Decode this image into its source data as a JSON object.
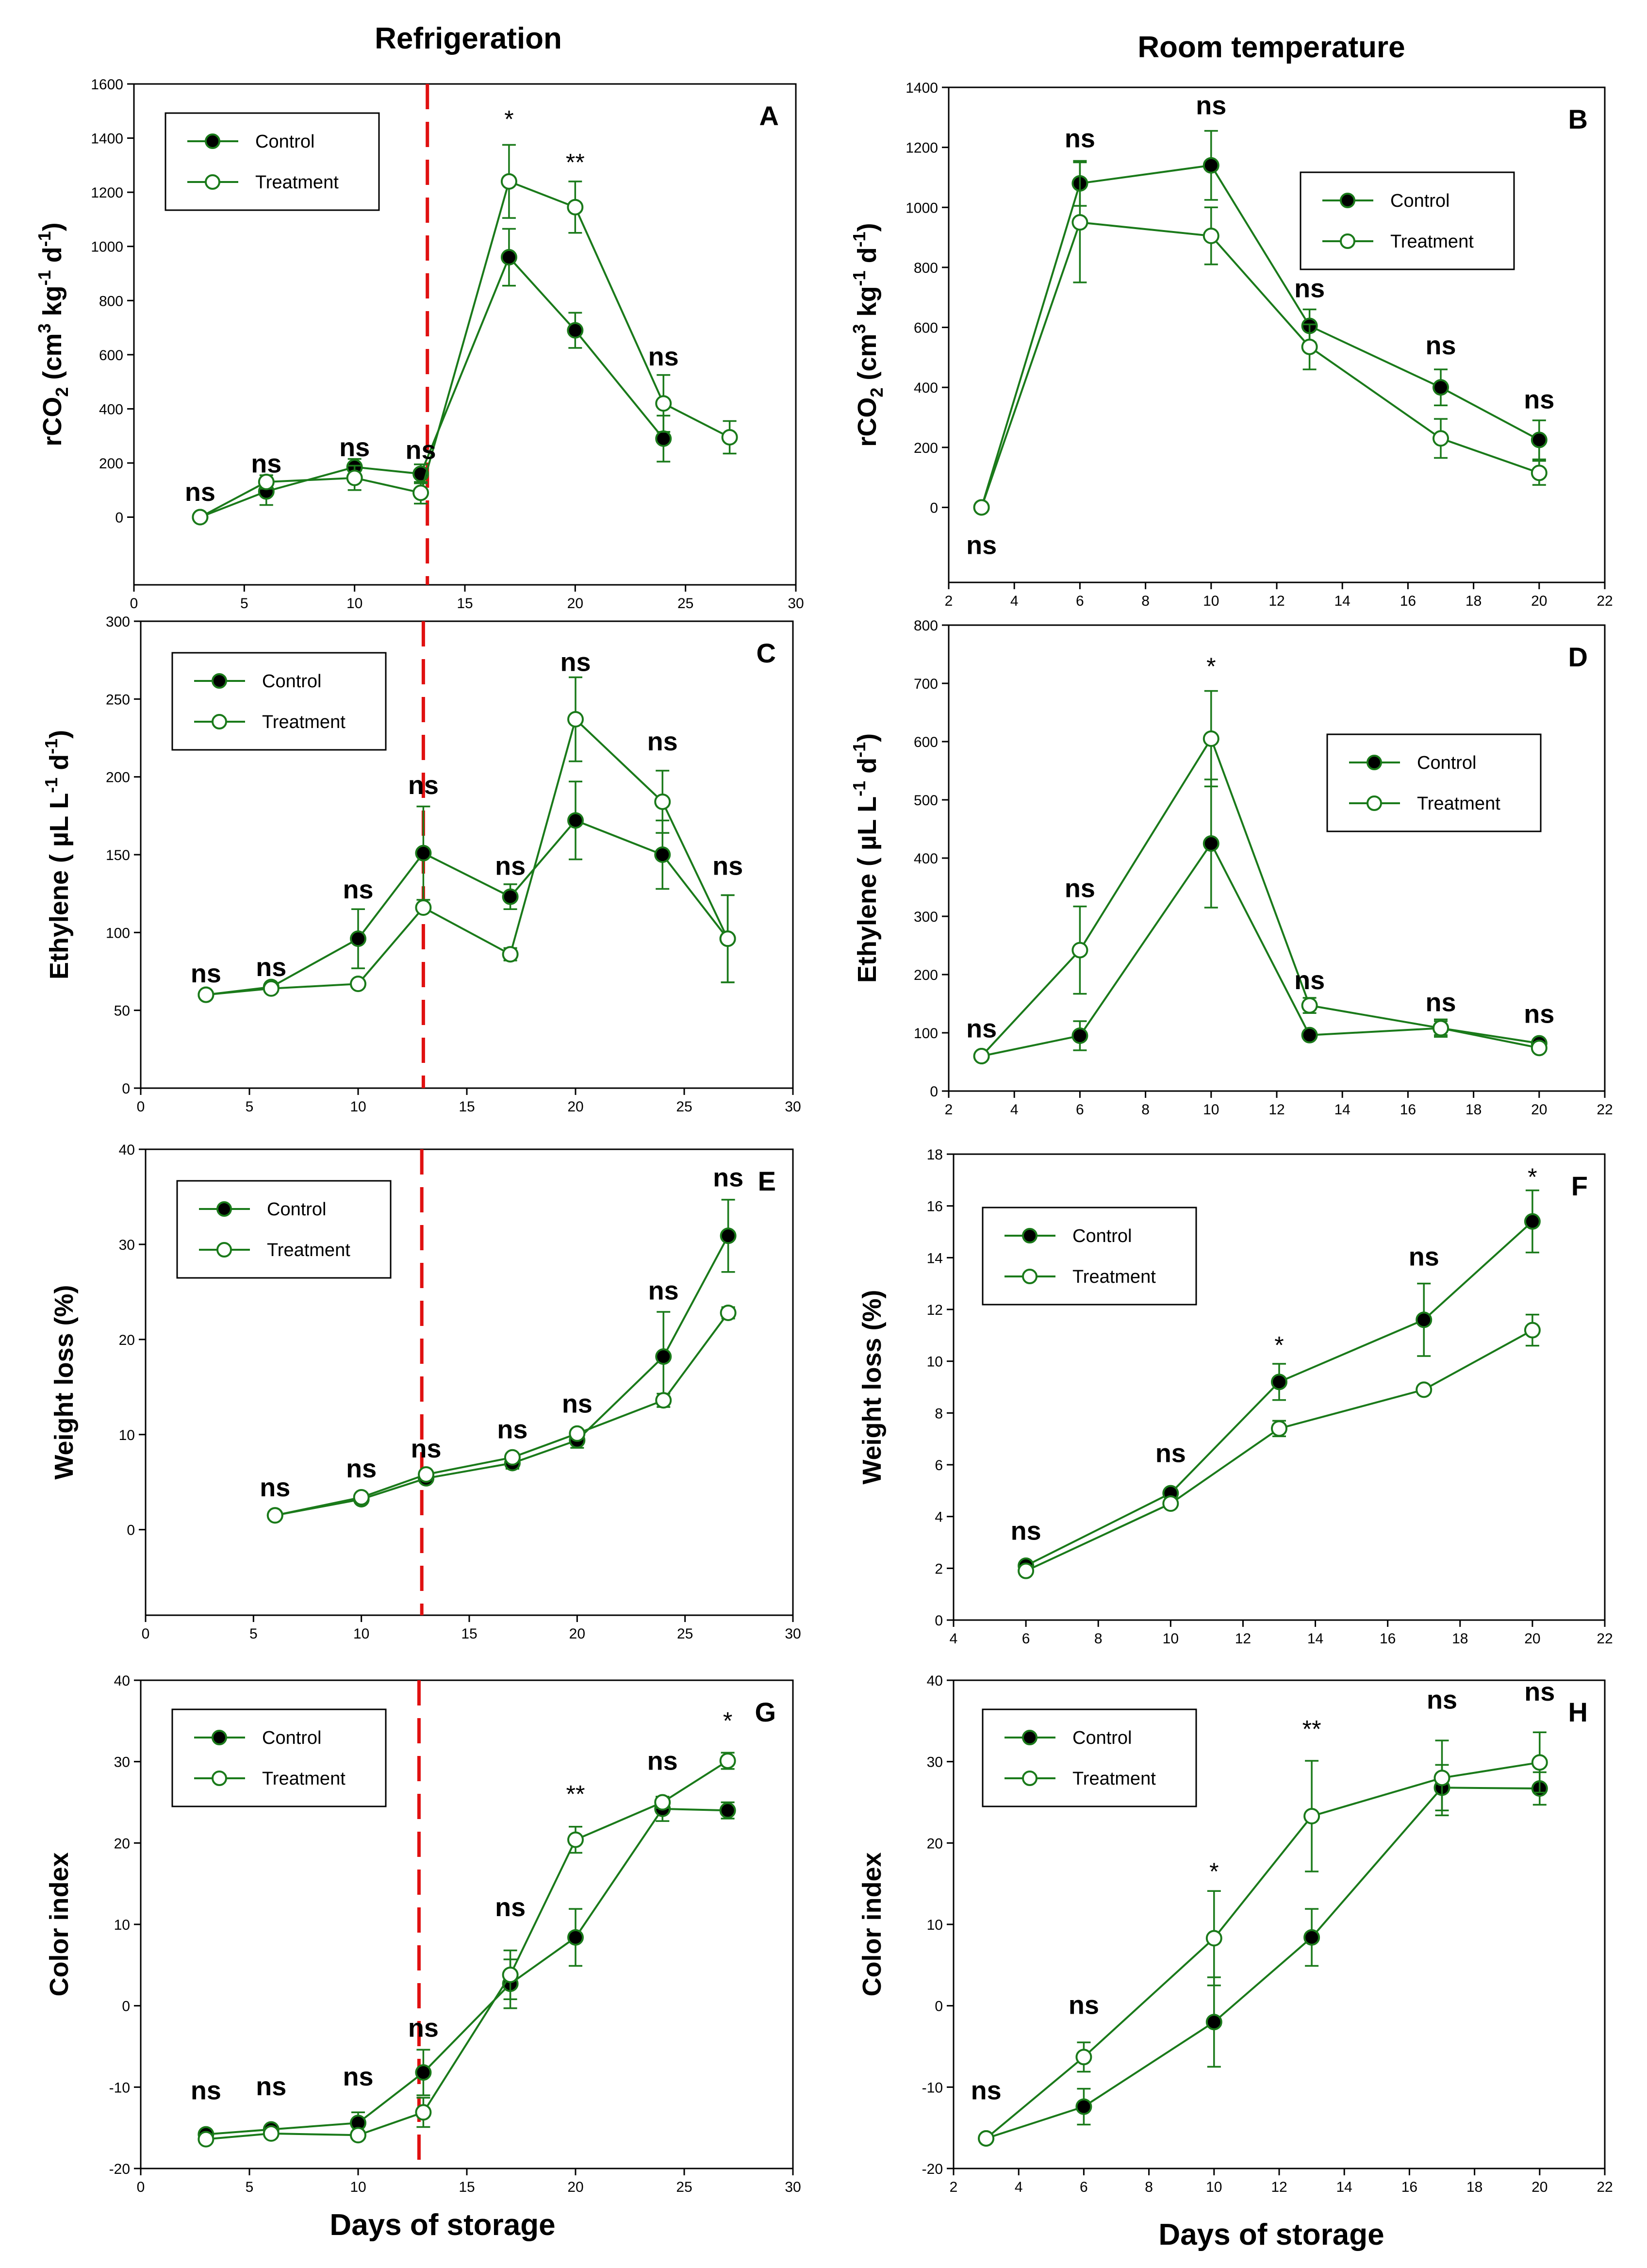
{
  "columns": {
    "left": "Refrigeration",
    "right": "Room temperature"
  },
  "xlabel": "Days of storage",
  "colors": {
    "series": "#1a7a1a",
    "marker_control": "#000000",
    "marker_treatment": "#ffffff",
    "divider": "#e01010",
    "text": "#000000"
  },
  "chart_data": [
    {
      "type": "line",
      "id": "A",
      "letter": "A",
      "ylabel_main": "rCO",
      "ylabel_sub": "2",
      "ylabel_rest": " (cm",
      "ylabel_sup1": "3",
      "ylabel_mid": " kg",
      "ylabel_sup2": "-1",
      "ylabel_mid2": " d",
      "ylabel_sup3": "-1",
      "ylabel_end": ")",
      "xlim": [
        0,
        30
      ],
      "ylim": [
        -250,
        1600
      ],
      "xticks": [
        0,
        5,
        10,
        15,
        20,
        25,
        30
      ],
      "yticks": [
        0,
        200,
        400,
        600,
        800,
        1000,
        1200,
        1400,
        1600
      ],
      "legend": {
        "position": "top-left",
        "control": "Control",
        "treatment": "Treatment"
      },
      "divider_x": 13.3,
      "series": [
        {
          "name": "Control",
          "x": [
            3,
            6,
            10,
            13,
            17,
            20,
            24
          ],
          "y": [
            0,
            95,
            185,
            160,
            960,
            690,
            290
          ],
          "err": [
            0,
            50,
            30,
            35,
            105,
            65,
            85
          ]
        },
        {
          "name": "Treatment",
          "x": [
            3,
            6,
            10,
            13,
            17,
            20,
            24,
            27
          ],
          "y": [
            0,
            130,
            145,
            90,
            1240,
            1145,
            420,
            295
          ],
          "err": [
            0,
            25,
            45,
            40,
            135,
            95,
            105,
            60
          ]
        }
      ],
      "annotations": [
        {
          "x": 3,
          "y": 60,
          "text": "ns"
        },
        {
          "x": 6,
          "y": 165,
          "text": "ns"
        },
        {
          "x": 10,
          "y": 225,
          "text": "ns"
        },
        {
          "x": 13,
          "y": 215,
          "text": "ns"
        },
        {
          "x": 17,
          "y": 1440,
          "text": "*"
        },
        {
          "x": 20,
          "y": 1280,
          "text": "**"
        },
        {
          "x": 24,
          "y": 560,
          "text": "ns"
        }
      ]
    },
    {
      "type": "line",
      "id": "B",
      "letter": "B",
      "ylabel_main": "rCO",
      "ylabel_sub": "2",
      "ylabel_rest": " (cm",
      "ylabel_sup1": "3",
      "ylabel_mid": " kg",
      "ylabel_sup2": "-1",
      "ylabel_mid2": " d",
      "ylabel_sup3": "-1",
      "ylabel_end": ")",
      "xlim": [
        2,
        22
      ],
      "ylim": [
        -250,
        1400
      ],
      "xticks": [
        2,
        4,
        6,
        8,
        10,
        12,
        14,
        16,
        18,
        20,
        22
      ],
      "yticks": [
        0,
        200,
        400,
        600,
        800,
        1000,
        1200,
        1400
      ],
      "legend": {
        "position": "top-right",
        "control": "Control",
        "treatment": "Treatment"
      },
      "divider_x": null,
      "series": [
        {
          "name": "Control",
          "x": [
            3,
            6,
            10,
            13,
            17,
            20
          ],
          "y": [
            0,
            1080,
            1140,
            605,
            400,
            225
          ],
          "err": [
            0,
            75,
            115,
            55,
            60,
            65
          ]
        },
        {
          "name": "Treatment",
          "x": [
            3,
            6,
            10,
            13,
            17,
            20
          ],
          "y": [
            0,
            950,
            905,
            535,
            230,
            115
          ],
          "err": [
            0,
            200,
            95,
            75,
            65,
            40
          ]
        }
      ],
      "annotations": [
        {
          "x": 3,
          "y": -155,
          "text": "ns"
        },
        {
          "x": 6,
          "y": 1200,
          "text": "ns"
        },
        {
          "x": 10,
          "y": 1310,
          "text": "ns"
        },
        {
          "x": 13,
          "y": 700,
          "text": "ns"
        },
        {
          "x": 17,
          "y": 510,
          "text": "ns"
        },
        {
          "x": 20,
          "y": 330,
          "text": "ns"
        }
      ]
    },
    {
      "type": "line",
      "id": "C",
      "letter": "C",
      "ylabel_main": "Ethylene ( µL L",
      "ylabel_sup1": "-1",
      "ylabel_mid": " d",
      "ylabel_sup2": "-1",
      "ylabel_end": ")",
      "xlim": [
        0,
        30
      ],
      "ylim": [
        0,
        300
      ],
      "xticks": [
        0,
        5,
        10,
        15,
        20,
        25,
        30
      ],
      "yticks": [
        0,
        50,
        100,
        150,
        200,
        250,
        300
      ],
      "legend": {
        "position": "top-left",
        "control": "Control",
        "treatment": "Treatment"
      },
      "divider_x": 13.0,
      "series": [
        {
          "name": "Control",
          "x": [
            3,
            6,
            10,
            13,
            17,
            20,
            24,
            27
          ],
          "y": [
            60,
            65,
            96,
            151,
            123,
            172,
            150,
            96
          ],
          "err": [
            0,
            0,
            19,
            30,
            8,
            25,
            22,
            28
          ]
        },
        {
          "name": "Treatment",
          "x": [
            3,
            6,
            10,
            13,
            17,
            20,
            24,
            27
          ],
          "y": [
            60,
            64,
            67,
            116,
            86,
            237,
            184,
            96
          ],
          "err": [
            0,
            0,
            0,
            0,
            4,
            27,
            20,
            28
          ]
        }
      ],
      "annotations": [
        {
          "x": 3,
          "y": 68,
          "text": "ns"
        },
        {
          "x": 6,
          "y": 72,
          "text": "ns"
        },
        {
          "x": 10,
          "y": 122,
          "text": "ns"
        },
        {
          "x": 13,
          "y": 189,
          "text": "ns"
        },
        {
          "x": 17,
          "y": 137,
          "text": "ns"
        },
        {
          "x": 20,
          "y": 268,
          "text": "ns"
        },
        {
          "x": 24,
          "y": 217,
          "text": "ns"
        },
        {
          "x": 27,
          "y": 137,
          "text": "ns"
        }
      ]
    },
    {
      "type": "line",
      "id": "D",
      "letter": "D",
      "ylabel_main": "Ethylene ( µL L",
      "ylabel_sup1": "-1",
      "ylabel_mid": " d",
      "ylabel_sup2": "-1",
      "ylabel_end": ")",
      "xlim": [
        2,
        22
      ],
      "ylim": [
        0,
        800
      ],
      "xticks": [
        2,
        4,
        6,
        8,
        10,
        12,
        14,
        16,
        18,
        20,
        22
      ],
      "yticks": [
        0,
        100,
        200,
        300,
        400,
        500,
        600,
        700,
        800
      ],
      "legend": {
        "position": "top-right",
        "control": "Control",
        "treatment": "Treatment"
      },
      "divider_x": null,
      "series": [
        {
          "name": "Control",
          "x": [
            3,
            6,
            10,
            13,
            17,
            20
          ],
          "y": [
            60,
            95,
            425,
            96,
            108,
            82
          ],
          "err": [
            0,
            25,
            110,
            0,
            15,
            0
          ]
        },
        {
          "name": "Treatment",
          "x": [
            3,
            6,
            10,
            13,
            17,
            20
          ],
          "y": [
            60,
            242,
            605,
            147,
            108,
            74
          ],
          "err": [
            0,
            75,
            82,
            13,
            12,
            6
          ]
        }
      ],
      "annotations": [
        {
          "x": 3,
          "y": 92,
          "text": "ns"
        },
        {
          "x": 6,
          "y": 333,
          "text": "ns"
        },
        {
          "x": 10,
          "y": 715,
          "text": "*"
        },
        {
          "x": 13,
          "y": 175,
          "text": "ns"
        },
        {
          "x": 17,
          "y": 137,
          "text": "ns"
        },
        {
          "x": 20,
          "y": 117,
          "text": "ns"
        }
      ]
    },
    {
      "type": "line",
      "id": "E",
      "letter": "E",
      "ylabel_main": "Weight loss (%)",
      "xlim": [
        0,
        30
      ],
      "ylim": [
        -9,
        40
      ],
      "xticks": [
        0,
        5,
        10,
        15,
        20,
        25,
        30
      ],
      "yticks": [
        0,
        10,
        20,
        30,
        40
      ],
      "legend": {
        "position": "top-left",
        "control": "Control",
        "treatment": "Treatment"
      },
      "divider_x": 12.8,
      "series": [
        {
          "name": "Control",
          "x": [
            6,
            10,
            13,
            17,
            20,
            24,
            27
          ],
          "y": [
            1.5,
            3.2,
            5.4,
            7.0,
            9.4,
            18.2,
            30.9
          ],
          "err": [
            0,
            0,
            0,
            0.6,
            0.8,
            4.7,
            3.8
          ]
        },
        {
          "name": "Treatment",
          "x": [
            6,
            10,
            13,
            17,
            20,
            24,
            27
          ],
          "y": [
            1.5,
            3.4,
            5.8,
            7.6,
            10.1,
            13.6,
            22.8
          ],
          "err": [
            0,
            0,
            0,
            0,
            0,
            0.7,
            0.6
          ]
        }
      ],
      "annotations": [
        {
          "x": 6,
          "y": 3.5,
          "text": "ns"
        },
        {
          "x": 10,
          "y": 5.5,
          "text": "ns"
        },
        {
          "x": 13,
          "y": 7.6,
          "text": "ns"
        },
        {
          "x": 17,
          "y": 9.6,
          "text": "ns"
        },
        {
          "x": 20,
          "y": 12.3,
          "text": "ns"
        },
        {
          "x": 24,
          "y": 24.2,
          "text": "ns"
        },
        {
          "x": 27,
          "y": 36.1,
          "text": "ns"
        }
      ]
    },
    {
      "type": "line",
      "id": "F",
      "letter": "F",
      "ylabel_main": "Weight loss (%)",
      "xlim": [
        4,
        22
      ],
      "ylim": [
        0,
        18
      ],
      "xticks": [
        4,
        6,
        8,
        10,
        12,
        14,
        16,
        18,
        20,
        22
      ],
      "yticks": [
        0,
        2,
        4,
        6,
        8,
        10,
        12,
        14,
        16,
        18
      ],
      "legend": {
        "position": "top-left",
        "control": "Control",
        "treatment": "Treatment"
      },
      "divider_x": null,
      "series": [
        {
          "name": "Control",
          "x": [
            6,
            10,
            13,
            17,
            20
          ],
          "y": [
            2.1,
            4.9,
            9.2,
            11.6,
            15.4
          ],
          "err": [
            0,
            0,
            0.7,
            1.4,
            1.2
          ]
        },
        {
          "name": "Treatment",
          "x": [
            6,
            10,
            13,
            17,
            20
          ],
          "y": [
            1.9,
            4.5,
            7.4,
            8.9,
            11.2
          ],
          "err": [
            0,
            0,
            0.3,
            0,
            0.6
          ]
        }
      ],
      "annotations": [
        {
          "x": 6,
          "y": 3.1,
          "text": "ns"
        },
        {
          "x": 10,
          "y": 6.1,
          "text": "ns"
        },
        {
          "x": 13,
          "y": 10.3,
          "text": "*"
        },
        {
          "x": 17,
          "y": 13.7,
          "text": "ns"
        },
        {
          "x": 20,
          "y": 16.8,
          "text": "*"
        }
      ]
    },
    {
      "type": "line",
      "id": "G",
      "letter": "G",
      "ylabel_main": "Color index",
      "xlim": [
        0,
        30
      ],
      "ylim": [
        -20,
        40
      ],
      "xticks": [
        0,
        5,
        10,
        15,
        20,
        25,
        30
      ],
      "yticks": [
        -20,
        -10,
        0,
        10,
        20,
        30,
        40
      ],
      "legend": {
        "position": "top-left",
        "control": "Control",
        "treatment": "Treatment"
      },
      "divider_x": 12.8,
      "series": [
        {
          "name": "Control",
          "x": [
            3,
            6,
            10,
            13,
            17,
            20,
            24,
            27
          ],
          "y": [
            -15.8,
            -15.2,
            -14.4,
            -8.2,
            2.7,
            8.4,
            24.2,
            24.0
          ],
          "err": [
            0,
            0,
            1.3,
            2.8,
            3.0,
            3.5,
            1.5,
            1.0
          ]
        },
        {
          "name": "Treatment",
          "x": [
            3,
            6,
            10,
            13,
            17,
            20,
            24,
            27
          ],
          "y": [
            -16.4,
            -15.7,
            -15.9,
            -13.1,
            3.8,
            20.4,
            25.0,
            30.1
          ],
          "err": [
            0,
            0,
            0,
            1.8,
            3.0,
            1.6,
            0.7,
            1.0
          ]
        }
      ],
      "annotations": [
        {
          "x": 3,
          "y": -11.5,
          "text": "ns"
        },
        {
          "x": 6,
          "y": -11.0,
          "text": "ns"
        },
        {
          "x": 10,
          "y": -9.8,
          "text": "ns"
        },
        {
          "x": 13,
          "y": -3.8,
          "text": "ns"
        },
        {
          "x": 17,
          "y": 11.0,
          "text": "ns"
        },
        {
          "x": 20,
          "y": 25.0,
          "text": "**"
        },
        {
          "x": 24,
          "y": 29.0,
          "text": "ns"
        },
        {
          "x": 27,
          "y": 34.0,
          "text": "*"
        }
      ]
    },
    {
      "type": "line",
      "id": "H",
      "letter": "H",
      "ylabel_main": "Color index",
      "xlim": [
        2,
        22
      ],
      "ylim": [
        -20,
        40
      ],
      "xticks": [
        2,
        4,
        6,
        8,
        10,
        12,
        14,
        16,
        18,
        20,
        22
      ],
      "yticks": [
        -20,
        -10,
        0,
        10,
        20,
        30,
        40
      ],
      "legend": {
        "position": "top-left",
        "control": "Control",
        "treatment": "Treatment"
      },
      "divider_x": null,
      "series": [
        {
          "name": "Control",
          "x": [
            3,
            6,
            10,
            13,
            17,
            20
          ],
          "y": [
            -16.3,
            -12.4,
            -2.0,
            8.4,
            26.8,
            26.7
          ],
          "err": [
            0,
            2.2,
            5.5,
            3.5,
            2.8,
            2.0
          ]
        },
        {
          "name": "Treatment",
          "x": [
            3,
            6,
            10,
            13,
            17,
            20
          ],
          "y": [
            -16.3,
            -6.3,
            8.3,
            23.3,
            28.0,
            29.9
          ],
          "err": [
            0,
            1.8,
            5.8,
            6.8,
            4.6,
            3.7
          ]
        }
      ],
      "annotations": [
        {
          "x": 3,
          "y": -11.5,
          "text": "ns"
        },
        {
          "x": 6,
          "y": -1.0,
          "text": "ns"
        },
        {
          "x": 10,
          "y": 15.5,
          "text": "*"
        },
        {
          "x": 13,
          "y": 33.0,
          "text": "**"
        },
        {
          "x": 17,
          "y": 36.5,
          "text": "ns"
        },
        {
          "x": 20,
          "y": 37.5,
          "text": "ns"
        }
      ]
    }
  ]
}
